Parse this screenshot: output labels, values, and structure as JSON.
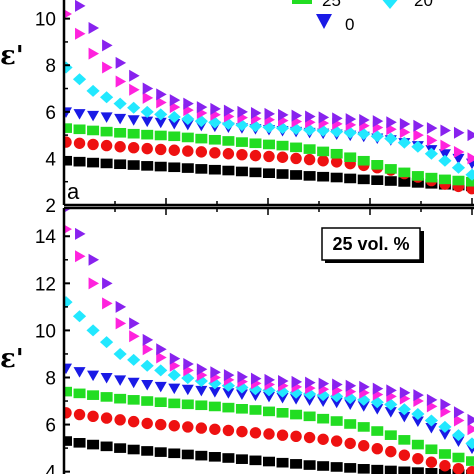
{
  "chart_data": [
    {
      "type": "scatter",
      "panel_label": "a",
      "ylabel": "ε'",
      "ylim": [
        2,
        10.8
      ],
      "yticks": [
        "2",
        "4",
        "6",
        "8",
        "10"
      ],
      "legend": [
        {
          "label": "25",
          "marker": "square",
          "color": "#22dd22"
        },
        {
          "label": "20",
          "marker": "diamond",
          "color": "#22e8ff"
        },
        {
          "label": "0",
          "marker": "triangle-down",
          "color": "#1a1ae6"
        }
      ],
      "series": [
        {
          "marker": "square",
          "color": "#000000",
          "values": [
            3.9,
            3.82,
            3.75,
            3.68,
            3.62,
            3.55,
            3.48,
            3.4,
            3.33,
            3.25,
            3.18,
            3.1,
            3.03,
            2.95,
            2.87,
            2.8
          ]
        },
        {
          "marker": "circle",
          "color": "#ee1111",
          "values": [
            4.7,
            4.6,
            4.5,
            4.42,
            4.35,
            4.28,
            4.2,
            4.12,
            4.05,
            3.95,
            3.85,
            3.7,
            3.5,
            3.2,
            2.9,
            2.7
          ]
        },
        {
          "color": "#22dd22",
          "marker": "square",
          "values": [
            5.3,
            5.2,
            5.1,
            5.02,
            4.95,
            4.85,
            4.75,
            4.65,
            4.55,
            4.4,
            4.2,
            3.9,
            3.55,
            3.25,
            3.1,
            3.0
          ]
        },
        {
          "color": "#1a1ae6",
          "marker": "triangle-down",
          "values": [
            6.0,
            5.85,
            5.72,
            5.6,
            5.5,
            5.42,
            5.35,
            5.28,
            5.2,
            5.12,
            5.05,
            4.95,
            4.8,
            4.55,
            4.2,
            3.8
          ]
        },
        {
          "color": "#22e8ff",
          "marker": "diamond",
          "values": [
            7.9,
            6.9,
            6.35,
            6.0,
            5.78,
            5.6,
            5.48,
            5.38,
            5.3,
            5.22,
            5.15,
            5.05,
            4.85,
            4.5,
            3.9,
            3.3
          ]
        },
        {
          "marker": "triangle-right",
          "color": "#ff22dd",
          "values": [
            10.2,
            8.5,
            7.3,
            6.6,
            6.2,
            5.95,
            5.8,
            5.7,
            5.62,
            5.55,
            5.48,
            5.4,
            5.25,
            5.0,
            4.55,
            4.0
          ]
        },
        {
          "marker": "triangle-right",
          "color": "#8822ee",
          "values": [
            11.5,
            9.6,
            8.1,
            7.0,
            6.5,
            6.2,
            6.05,
            5.95,
            5.87,
            5.8,
            5.72,
            5.65,
            5.55,
            5.4,
            5.2,
            5.0
          ]
        }
      ]
    },
    {
      "type": "scatter",
      "ylabel": "ε'",
      "annotation": "25 vol. %",
      "ylim": [
        3.9,
        15.2
      ],
      "yticks": [
        "4",
        "6",
        "8",
        "10",
        "12",
        "14"
      ],
      "series": [
        {
          "marker": "square",
          "color": "#000000",
          "values": [
            5.3,
            5.15,
            5.0,
            4.88,
            4.78,
            4.68,
            4.58,
            4.48,
            4.38,
            4.28,
            4.2,
            4.12,
            4.05,
            3.98,
            3.92,
            3.88
          ]
        },
        {
          "marker": "circle",
          "color": "#ee1111",
          "values": [
            6.5,
            6.35,
            6.2,
            6.05,
            5.95,
            5.85,
            5.75,
            5.65,
            5.55,
            5.45,
            5.3,
            5.1,
            4.85,
            4.55,
            4.25,
            4.0
          ]
        },
        {
          "color": "#22dd22",
          "marker": "square",
          "values": [
            7.4,
            7.25,
            7.1,
            7.0,
            6.9,
            6.82,
            6.72,
            6.62,
            6.5,
            6.35,
            6.15,
            5.9,
            5.55,
            5.15,
            4.75,
            4.45
          ]
        },
        {
          "marker": "triangle-down",
          "color": "#1a1ae6",
          "values": [
            8.4,
            8.1,
            7.9,
            7.7,
            7.55,
            7.45,
            7.35,
            7.25,
            7.15,
            7.05,
            6.95,
            6.8,
            6.55,
            6.15,
            5.6,
            5.0
          ]
        },
        {
          "marker": "diamond",
          "color": "#22e8ff",
          "values": [
            11.2,
            10.0,
            9.0,
            8.5,
            8.1,
            7.85,
            7.65,
            7.5,
            7.4,
            7.3,
            7.2,
            7.05,
            6.85,
            6.45,
            5.9,
            5.2
          ]
        },
        {
          "marker": "triangle-right",
          "color": "#ff22dd",
          "values": [
            14.3,
            12.0,
            10.3,
            9.2,
            8.5,
            8.1,
            7.9,
            7.75,
            7.65,
            7.55,
            7.45,
            7.35,
            7.2,
            7.0,
            6.55,
            5.8
          ]
        },
        {
          "color": "#8822ee",
          "marker": "triangle-right",
          "values": [
            15.2,
            13.0,
            11.0,
            9.6,
            8.8,
            8.35,
            8.1,
            7.95,
            7.85,
            7.78,
            7.7,
            7.6,
            7.45,
            7.25,
            6.85,
            6.2
          ]
        }
      ]
    }
  ]
}
